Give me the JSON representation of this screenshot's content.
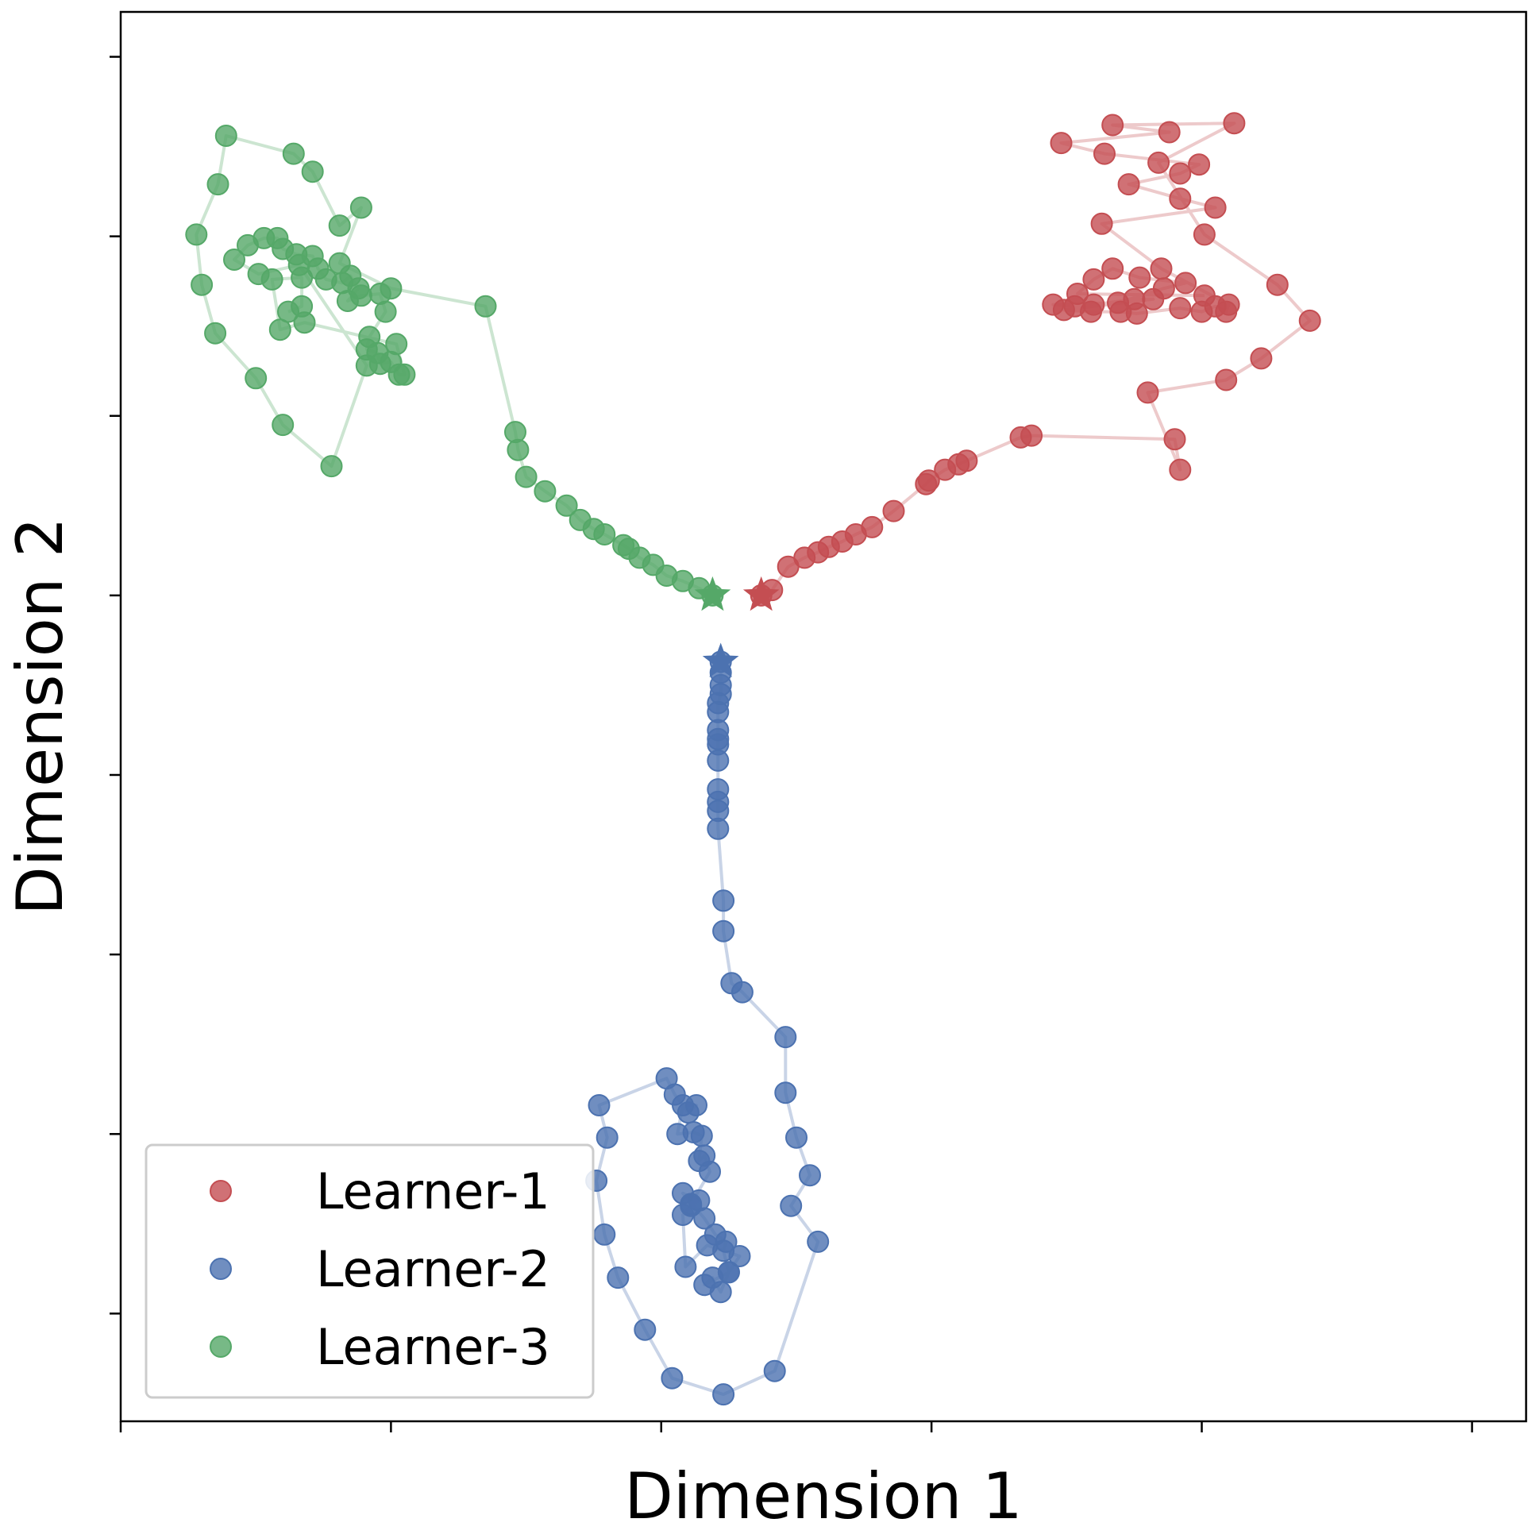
{
  "chart_data": {
    "type": "scatter",
    "title": "",
    "xlabel": "Dimension 1",
    "ylabel": "Dimension 2",
    "xlim": [
      -0.5,
      4.7
    ],
    "ylim": [
      -7.1,
      0.75
    ],
    "x_ticks": [
      -0.5,
      0.5,
      1.5,
      2.5,
      3.5,
      4.5
    ],
    "y_ticks": [
      0.5,
      -0.5,
      -1.5,
      -2.5,
      -3.5,
      -4.5,
      -5.5,
      -6.5
    ],
    "grid": false,
    "legend": {
      "position": "lower-left"
    },
    "series": [
      {
        "name": "Learner-1",
        "color": "#c44e52",
        "start": [
          1.87,
          -2.5
        ],
        "points": [
          [
            1.87,
            -2.5
          ],
          [
            1.91,
            -2.47
          ],
          [
            1.97,
            -2.34
          ],
          [
            2.03,
            -2.29
          ],
          [
            2.08,
            -2.26
          ],
          [
            2.12,
            -2.23
          ],
          [
            2.17,
            -2.2
          ],
          [
            2.22,
            -2.16
          ],
          [
            2.28,
            -2.12
          ],
          [
            2.36,
            -2.03
          ],
          [
            2.48,
            -1.88
          ],
          [
            2.49,
            -1.86
          ],
          [
            2.55,
            -1.8
          ],
          [
            2.6,
            -1.77
          ],
          [
            2.63,
            -1.75
          ],
          [
            2.83,
            -1.62
          ],
          [
            2.87,
            -1.61
          ],
          [
            3.4,
            -1.63
          ],
          [
            3.42,
            -1.8
          ],
          [
            3.3,
            -1.37
          ],
          [
            3.59,
            -1.3
          ],
          [
            3.72,
            -1.18
          ],
          [
            3.9,
            -0.97
          ],
          [
            3.78,
            -0.77
          ],
          [
            3.51,
            -0.49
          ],
          [
            3.34,
            -0.09
          ],
          [
            3.62,
            0.13
          ],
          [
            3.17,
            0.12
          ],
          [
            3.38,
            0.08
          ],
          [
            2.98,
            0.02
          ],
          [
            3.14,
            -0.04
          ],
          [
            3.49,
            -0.1
          ],
          [
            3.42,
            -0.15
          ],
          [
            3.23,
            -0.21
          ],
          [
            3.42,
            -0.29
          ],
          [
            3.55,
            -0.34
          ],
          [
            3.13,
            -0.43
          ],
          [
            3.35,
            -0.68
          ],
          [
            3.6,
            -0.88
          ],
          [
            3.59,
            -0.92
          ],
          [
            3.55,
            -0.89
          ],
          [
            3.5,
            -0.92
          ],
          [
            3.42,
            -0.9
          ],
          [
            3.26,
            -0.93
          ],
          [
            3.2,
            -0.92
          ],
          [
            3.09,
            -0.92
          ],
          [
            2.99,
            -0.91
          ],
          [
            3.32,
            -0.85
          ],
          [
            3.25,
            -0.85
          ],
          [
            3.1,
            -0.88
          ],
          [
            3.03,
            -0.89
          ],
          [
            2.95,
            -0.88
          ],
          [
            3.19,
            -0.87
          ],
          [
            3.36,
            -0.79
          ],
          [
            3.44,
            -0.76
          ],
          [
            3.27,
            -0.73
          ],
          [
            3.17,
            -0.68
          ],
          [
            3.1,
            -0.74
          ],
          [
            3.04,
            -0.82
          ],
          [
            3.51,
            -0.83
          ]
        ]
      },
      {
        "name": "Learner-2",
        "color": "#4c72b0",
        "start": [
          1.72,
          -2.87
        ],
        "points": [
          [
            1.72,
            -2.87
          ],
          [
            1.72,
            -2.93
          ],
          [
            1.72,
            -3.0
          ],
          [
            1.72,
            -3.05
          ],
          [
            1.71,
            -3.1
          ],
          [
            1.71,
            -3.15
          ],
          [
            1.71,
            -3.25
          ],
          [
            1.71,
            -3.3
          ],
          [
            1.71,
            -3.33
          ],
          [
            1.71,
            -3.42
          ],
          [
            1.71,
            -3.58
          ],
          [
            1.71,
            -3.65
          ],
          [
            1.71,
            -3.7
          ],
          [
            1.71,
            -3.8
          ],
          [
            1.73,
            -4.2
          ],
          [
            1.73,
            -4.37
          ],
          [
            1.76,
            -4.66
          ],
          [
            1.8,
            -4.71
          ],
          [
            1.96,
            -4.96
          ],
          [
            1.96,
            -5.27
          ],
          [
            2.0,
            -5.52
          ],
          [
            2.05,
            -5.73
          ],
          [
            1.98,
            -5.9
          ],
          [
            2.08,
            -6.1
          ],
          [
            1.92,
            -6.82
          ],
          [
            1.73,
            -6.95
          ],
          [
            1.54,
            -6.86
          ],
          [
            1.44,
            -6.59
          ],
          [
            1.34,
            -6.3
          ],
          [
            1.29,
            -6.06
          ],
          [
            1.26,
            -5.76
          ],
          [
            1.3,
            -5.52
          ],
          [
            1.27,
            -5.34
          ],
          [
            1.52,
            -5.19
          ],
          [
            1.55,
            -5.28
          ],
          [
            1.6,
            -5.38
          ],
          [
            1.63,
            -5.34
          ],
          [
            1.58,
            -5.34
          ],
          [
            1.56,
            -5.5
          ],
          [
            1.62,
            -5.49
          ],
          [
            1.65,
            -5.51
          ],
          [
            1.64,
            -5.65
          ],
          [
            1.66,
            -5.62
          ],
          [
            1.68,
            -5.71
          ],
          [
            1.61,
            -5.89
          ],
          [
            1.64,
            -5.87
          ],
          [
            1.58,
            -5.83
          ],
          [
            1.66,
            -5.97
          ],
          [
            1.7,
            -6.06
          ],
          [
            1.74,
            -6.1
          ],
          [
            1.73,
            -6.15
          ],
          [
            1.75,
            -6.27
          ],
          [
            1.72,
            -6.38
          ],
          [
            1.69,
            -6.3
          ],
          [
            1.66,
            -6.34
          ],
          [
            1.75,
            -6.27
          ],
          [
            1.79,
            -6.18
          ],
          [
            1.67,
            -6.12
          ],
          [
            1.59,
            -6.24
          ],
          [
            1.58,
            -5.95
          ],
          [
            1.61,
            -5.9
          ]
        ]
      },
      {
        "name": "Learner-3",
        "color": "#55a868",
        "start": [
          1.69,
          -2.5
        ],
        "points": [
          [
            1.69,
            -2.5
          ],
          [
            1.64,
            -2.46
          ],
          [
            1.58,
            -2.42
          ],
          [
            1.52,
            -2.39
          ],
          [
            1.47,
            -2.33
          ],
          [
            1.42,
            -2.29
          ],
          [
            1.38,
            -2.24
          ],
          [
            1.36,
            -2.22
          ],
          [
            1.29,
            -2.16
          ],
          [
            1.25,
            -2.13
          ],
          [
            1.2,
            -2.08
          ],
          [
            1.15,
            -2.0
          ],
          [
            1.07,
            -1.92
          ],
          [
            1.0,
            -1.84
          ],
          [
            0.97,
            -1.69
          ],
          [
            0.96,
            -1.59
          ],
          [
            0.85,
            -0.89
          ],
          [
            0.5,
            -0.79
          ],
          [
            0.31,
            -0.65
          ],
          [
            0.39,
            -0.34
          ],
          [
            0.31,
            -0.44
          ],
          [
            0.21,
            -0.14
          ],
          [
            0.14,
            -0.04
          ],
          [
            -0.11,
            0.06
          ],
          [
            -0.14,
            -0.21
          ],
          [
            -0.22,
            -0.49
          ],
          [
            -0.2,
            -0.77
          ],
          [
            -0.15,
            -1.04
          ],
          [
            -0.0,
            -1.29
          ],
          [
            0.1,
            -1.55
          ],
          [
            0.28,
            -1.78
          ],
          [
            0.41,
            -1.22
          ],
          [
            0.16,
            -0.66
          ],
          [
            0.01,
            -0.71
          ],
          [
            -0.08,
            -0.63
          ],
          [
            -0.03,
            -0.55
          ],
          [
            0.03,
            -0.51
          ],
          [
            0.08,
            -0.51
          ],
          [
            0.1,
            -0.57
          ],
          [
            0.15,
            -0.6
          ],
          [
            0.21,
            -0.61
          ],
          [
            0.23,
            -0.68
          ],
          [
            0.26,
            -0.74
          ],
          [
            0.32,
            -0.76
          ],
          [
            0.35,
            -0.72
          ],
          [
            0.38,
            -0.79
          ],
          [
            0.34,
            -0.86
          ],
          [
            0.39,
            -0.83
          ],
          [
            0.46,
            -0.82
          ],
          [
            0.48,
            -0.92
          ],
          [
            0.42,
            -1.06
          ],
          [
            0.41,
            -1.13
          ],
          [
            0.45,
            -1.15
          ],
          [
            0.46,
            -1.21
          ],
          [
            0.5,
            -1.2
          ],
          [
            0.53,
            -1.27
          ],
          [
            0.55,
            -1.27
          ],
          [
            0.52,
            -1.1
          ],
          [
            0.18,
            -0.98
          ],
          [
            0.09,
            -1.02
          ],
          [
            0.06,
            -0.74
          ],
          [
            0.17,
            -0.73
          ],
          [
            0.17,
            -0.89
          ],
          [
            0.12,
            -0.92
          ]
        ]
      }
    ]
  }
}
